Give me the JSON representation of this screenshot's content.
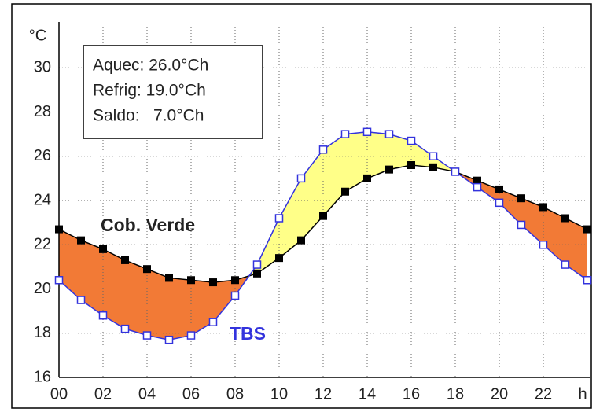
{
  "chart_data": {
    "type": "line",
    "y_unit": "°C",
    "x_unit": "h",
    "x": [
      0,
      1,
      2,
      3,
      4,
      5,
      6,
      7,
      8,
      9,
      10,
      11,
      12,
      13,
      14,
      15,
      16,
      17,
      18,
      19,
      20,
      21,
      22,
      23,
      24
    ],
    "series": [
      {
        "name": "Cob. Verde",
        "color": "#000000",
        "marker": "filled-square",
        "values": [
          22.7,
          22.2,
          21.8,
          21.3,
          20.9,
          20.5,
          20.4,
          20.3,
          20.4,
          20.7,
          21.4,
          22.2,
          23.3,
          24.4,
          25.0,
          25.4,
          25.6,
          25.5,
          25.3,
          24.9,
          24.5,
          24.1,
          23.7,
          23.2,
          22.7
        ]
      },
      {
        "name": "TBS",
        "color": "#3333dd",
        "marker": "hollow-square",
        "values": [
          20.4,
          19.5,
          18.8,
          18.2,
          17.9,
          17.7,
          17.9,
          18.5,
          19.7,
          21.1,
          23.2,
          25.0,
          26.3,
          27.0,
          27.1,
          27.0,
          26.7,
          26.0,
          25.3,
          24.6,
          23.9,
          22.9,
          22.0,
          21.1,
          20.4
        ]
      }
    ],
    "fill_below_colour": "#f27a36",
    "fill_above_colour": "#ffff88",
    "summary": [
      "Aquec: 26.0°Ch",
      "Refrig: 19.0°Ch",
      "Saldo:   7.0°Ch"
    ],
    "xlim": [
      0,
      24
    ],
    "xticks": [
      {
        "value": 0,
        "label": "00"
      },
      {
        "value": 2,
        "label": "02"
      },
      {
        "value": 4,
        "label": "04"
      },
      {
        "value": 6,
        "label": "06"
      },
      {
        "value": 8,
        "label": "08"
      },
      10,
      12,
      14,
      16,
      18,
      20,
      22
    ],
    "ylim": [
      16,
      32
    ],
    "yticks": [
      16,
      18,
      20,
      22,
      24,
      26,
      28,
      30
    ],
    "grid": true
  }
}
